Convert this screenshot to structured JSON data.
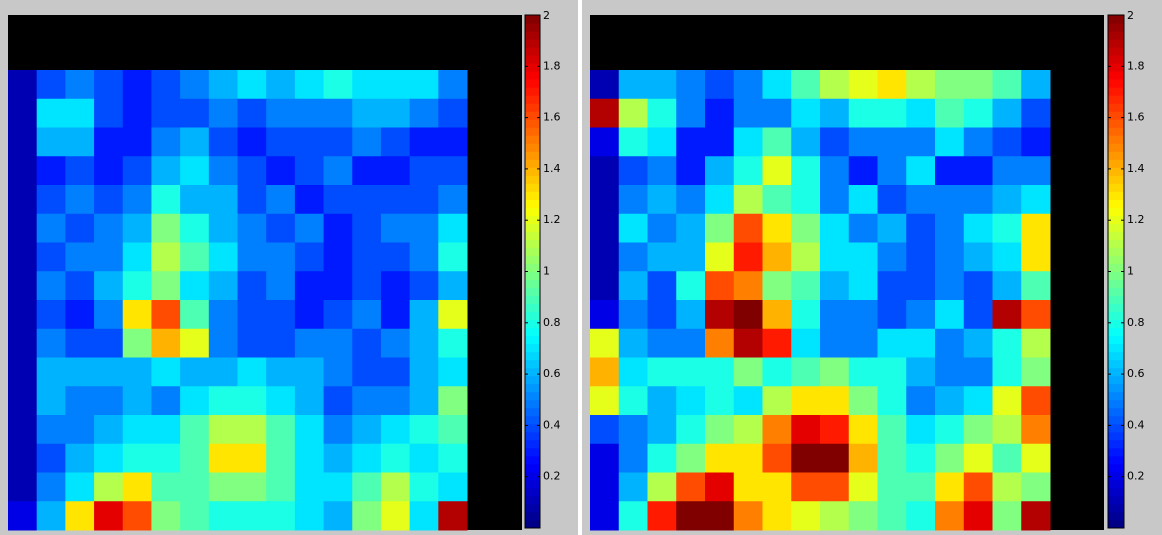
{
  "chart_data": [
    {
      "type": "heatmap",
      "colormap": "jet",
      "clim": [
        0,
        2
      ],
      "cticks": [
        0.2,
        0.4,
        0.6,
        0.8,
        1,
        1.2,
        1.4,
        1.6,
        1.8,
        2
      ],
      "z": [
        [
          0.1,
          0.4,
          0.5,
          0.4,
          0.3,
          0.4,
          0.5,
          0.6,
          0.7,
          0.6,
          0.7,
          0.8,
          0.7,
          0.7,
          0.7,
          0.5
        ],
        [
          0.1,
          0.7,
          0.7,
          0.4,
          0.3,
          0.4,
          0.4,
          0.5,
          0.4,
          0.5,
          0.5,
          0.5,
          0.6,
          0.6,
          0.5,
          0.4
        ],
        [
          0.1,
          0.6,
          0.6,
          0.3,
          0.3,
          0.5,
          0.6,
          0.4,
          0.3,
          0.4,
          0.4,
          0.4,
          0.5,
          0.4,
          0.3,
          0.3
        ],
        [
          0.1,
          0.3,
          0.4,
          0.3,
          0.4,
          0.6,
          0.7,
          0.5,
          0.4,
          0.3,
          0.4,
          0.5,
          0.3,
          0.3,
          0.4,
          0.4
        ],
        [
          0.1,
          0.4,
          0.5,
          0.4,
          0.5,
          0.8,
          0.6,
          0.6,
          0.4,
          0.5,
          0.3,
          0.4,
          0.4,
          0.4,
          0.4,
          0.5
        ],
        [
          0.1,
          0.5,
          0.4,
          0.5,
          0.6,
          1.0,
          0.8,
          0.6,
          0.5,
          0.4,
          0.5,
          0.3,
          0.4,
          0.5,
          0.5,
          0.7
        ],
        [
          0.1,
          0.4,
          0.5,
          0.5,
          0.7,
          1.1,
          0.9,
          0.7,
          0.5,
          0.5,
          0.4,
          0.3,
          0.4,
          0.4,
          0.5,
          0.8
        ],
        [
          0.1,
          0.5,
          0.4,
          0.6,
          0.8,
          1.0,
          0.7,
          0.6,
          0.4,
          0.5,
          0.3,
          0.3,
          0.4,
          0.3,
          0.4,
          0.6
        ],
        [
          0.1,
          0.4,
          0.3,
          0.5,
          1.3,
          1.6,
          0.9,
          0.5,
          0.4,
          0.4,
          0.3,
          0.4,
          0.5,
          0.3,
          0.6,
          1.2
        ],
        [
          0.1,
          0.5,
          0.4,
          0.4,
          1.0,
          1.4,
          1.2,
          0.5,
          0.4,
          0.4,
          0.5,
          0.5,
          0.4,
          0.5,
          0.6,
          0.8
        ],
        [
          0.1,
          0.6,
          0.6,
          0.6,
          0.6,
          0.7,
          0.6,
          0.6,
          0.7,
          0.6,
          0.6,
          0.5,
          0.4,
          0.4,
          0.6,
          0.7
        ],
        [
          0.1,
          0.6,
          0.5,
          0.5,
          0.6,
          0.5,
          0.7,
          0.8,
          0.8,
          0.7,
          0.6,
          0.4,
          0.5,
          0.5,
          0.6,
          1.0
        ],
        [
          0.1,
          0.5,
          0.5,
          0.6,
          0.7,
          0.7,
          0.9,
          1.1,
          1.1,
          0.9,
          0.7,
          0.5,
          0.6,
          0.7,
          0.8,
          0.9
        ],
        [
          0.1,
          0.4,
          0.6,
          0.7,
          0.8,
          0.8,
          0.9,
          1.3,
          1.3,
          0.9,
          0.7,
          0.6,
          0.7,
          0.8,
          0.7,
          0.8
        ],
        [
          0.1,
          0.5,
          0.7,
          1.1,
          1.3,
          0.9,
          0.9,
          1.0,
          1.0,
          0.9,
          0.7,
          0.7,
          0.9,
          1.1,
          0.8,
          0.7
        ],
        [
          0.2,
          0.6,
          1.3,
          1.8,
          1.6,
          1.0,
          0.9,
          0.8,
          0.8,
          0.8,
          0.7,
          0.6,
          1.0,
          1.2,
          0.7,
          1.9
        ]
      ]
    },
    {
      "type": "heatmap",
      "colormap": "jet",
      "clim": [
        0,
        2
      ],
      "cticks": [
        0.2,
        0.4,
        0.6,
        0.8,
        1,
        1.2,
        1.4,
        1.6,
        1.8,
        2
      ],
      "z": [
        [
          0.1,
          0.6,
          0.6,
          0.5,
          0.4,
          0.5,
          0.7,
          0.9,
          1.1,
          1.2,
          1.3,
          1.1,
          1.0,
          1.0,
          0.9,
          0.6
        ],
        [
          1.9,
          1.1,
          0.8,
          0.5,
          0.3,
          0.5,
          0.5,
          0.7,
          0.6,
          0.8,
          0.8,
          0.7,
          0.9,
          0.8,
          0.6,
          0.4
        ],
        [
          0.2,
          0.8,
          0.7,
          0.3,
          0.3,
          0.7,
          0.9,
          0.6,
          0.4,
          0.5,
          0.5,
          0.5,
          0.7,
          0.5,
          0.4,
          0.3
        ],
        [
          0.1,
          0.4,
          0.5,
          0.3,
          0.6,
          0.8,
          1.2,
          0.8,
          0.5,
          0.3,
          0.5,
          0.7,
          0.3,
          0.3,
          0.5,
          0.5
        ],
        [
          0.1,
          0.5,
          0.6,
          0.5,
          0.7,
          1.1,
          0.9,
          0.8,
          0.5,
          0.7,
          0.4,
          0.5,
          0.5,
          0.5,
          0.6,
          0.7
        ],
        [
          0.1,
          0.7,
          0.5,
          0.6,
          1.0,
          1.6,
          1.3,
          1.0,
          0.7,
          0.5,
          0.6,
          0.4,
          0.5,
          0.7,
          0.8,
          1.3
        ],
        [
          0.1,
          0.5,
          0.6,
          0.6,
          1.2,
          1.7,
          1.4,
          1.1,
          0.7,
          0.7,
          0.5,
          0.4,
          0.5,
          0.6,
          0.7,
          1.3
        ],
        [
          0.1,
          0.6,
          0.4,
          0.8,
          1.6,
          1.5,
          1.0,
          0.9,
          0.6,
          0.7,
          0.4,
          0.4,
          0.5,
          0.4,
          0.6,
          0.9
        ],
        [
          0.2,
          0.5,
          0.4,
          0.6,
          1.9,
          2.0,
          1.4,
          0.8,
          0.5,
          0.5,
          0.4,
          0.5,
          0.7,
          0.4,
          1.9,
          1.6
        ],
        [
          1.2,
          0.6,
          0.5,
          0.5,
          1.5,
          1.9,
          1.7,
          0.7,
          0.5,
          0.5,
          0.7,
          0.7,
          0.5,
          0.6,
          0.8,
          1.1
        ],
        [
          1.4,
          0.7,
          0.8,
          0.8,
          0.8,
          1.0,
          0.8,
          0.9,
          1.0,
          0.8,
          0.8,
          0.6,
          0.5,
          0.5,
          0.8,
          1.0
        ],
        [
          1.2,
          0.8,
          0.6,
          0.7,
          0.8,
          0.7,
          1.1,
          1.3,
          1.3,
          1.0,
          0.8,
          0.5,
          0.6,
          0.7,
          1.2,
          1.6
        ],
        [
          0.4,
          0.5,
          0.6,
          0.8,
          1.0,
          1.1,
          1.5,
          1.8,
          1.7,
          1.3,
          0.9,
          0.7,
          0.8,
          1.0,
          1.1,
          1.5
        ],
        [
          0.2,
          0.5,
          0.8,
          1.0,
          1.3,
          1.3,
          1.6,
          2.0,
          2.0,
          1.4,
          0.9,
          0.8,
          1.0,
          1.2,
          0.9,
          1.2
        ],
        [
          0.2,
          0.6,
          1.1,
          1.6,
          1.8,
          1.3,
          1.3,
          1.6,
          1.6,
          1.2,
          0.9,
          0.9,
          1.3,
          1.6,
          1.1,
          1.0
        ],
        [
          0.2,
          0.8,
          1.7,
          2.0,
          2.0,
          1.5,
          1.3,
          1.2,
          1.1,
          1.0,
          0.9,
          0.8,
          1.5,
          1.8,
          1.0,
          1.9
        ]
      ]
    }
  ]
}
